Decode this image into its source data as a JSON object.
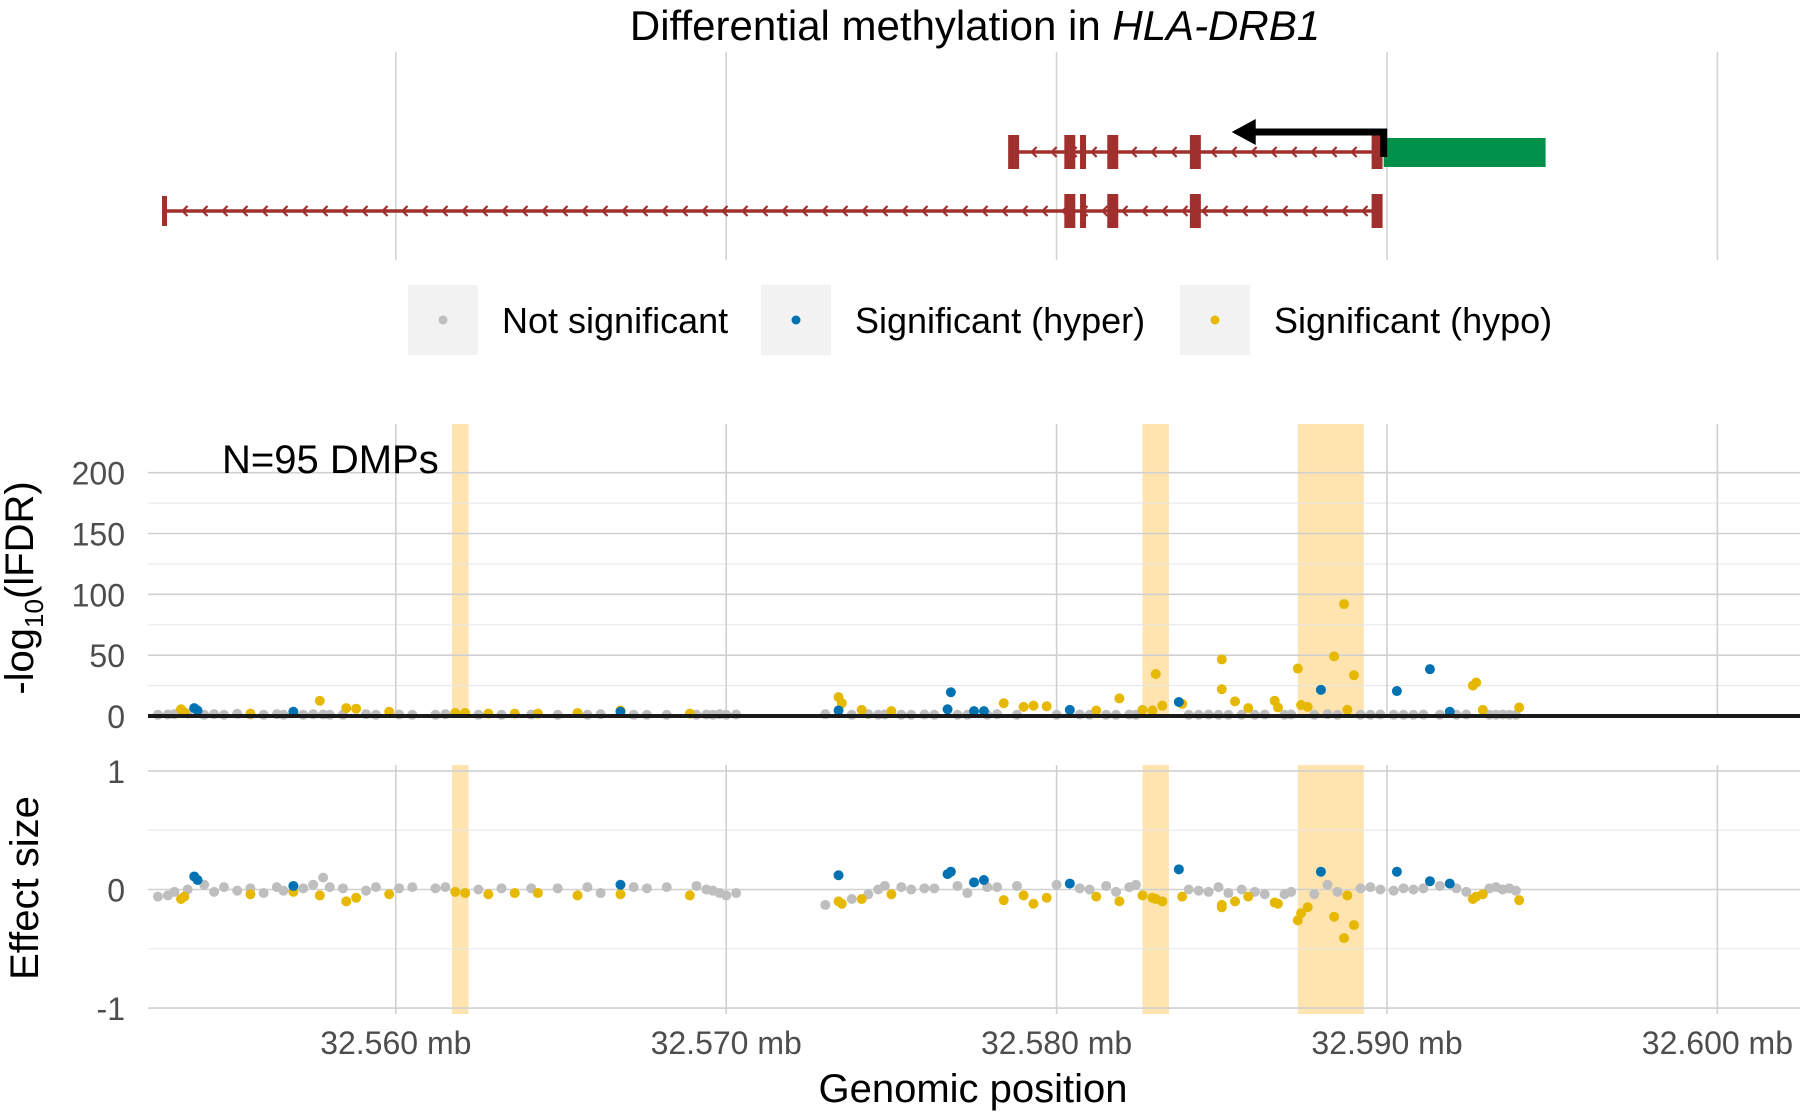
{
  "chart_data": {
    "type": "scatter",
    "title_prefix": "Differential methylation in ",
    "title_gene": "HLA-DRB1",
    "annotation": "N=95 DMPs",
    "xlabel": "Genomic position",
    "x_unit": "mb",
    "xlim": [
      32.5525,
      32.6025
    ],
    "x_ticks": [
      32.56,
      32.57,
      32.58,
      32.59,
      32.6
    ],
    "x_tick_labels": [
      "32.560 mb",
      "32.570 mb",
      "32.580 mb",
      "32.590 mb",
      "32.600 mb"
    ],
    "legend": {
      "placement": "top-center",
      "entries": [
        {
          "label": "Not significant",
          "color": "#BEBEBE"
        },
        {
          "label": "Significant (hyper)",
          "color": "#0072B2"
        },
        {
          "label": "Significant (hypo)",
          "color": "#E6B800"
        }
      ]
    },
    "colors": {
      "not_significant": "#BEBEBE",
      "hyper": "#0072B2",
      "hypo": "#E6B800",
      "highlight": "#FFE4B0",
      "exon": "#A0302D",
      "promoter": "#00904A",
      "tss_arrow": "#000000"
    },
    "gene_track": {
      "tss_arrow": {
        "from": 32.5899,
        "to": 32.5853,
        "direction": "minus"
      },
      "promoter": {
        "start": 32.5899,
        "end": 32.5948
      },
      "transcripts": [
        {
          "start": 32.5787,
          "end": 32.5897,
          "exons": [
            32.5787,
            32.5804,
            32.5808,
            32.5817,
            32.5842,
            32.5897
          ]
        },
        {
          "start": 32.553,
          "end": 32.5897,
          "exons": [
            32.553,
            32.5804,
            32.5808,
            32.5817,
            32.5842,
            32.5897
          ]
        }
      ]
    },
    "highlight_regions": [
      [
        32.5617,
        32.5622
      ],
      [
        32.5826,
        32.5834
      ],
      [
        32.5873,
        32.5893
      ]
    ],
    "panels": [
      {
        "ylabel_main": "-log",
        "ylabel_sub": "10",
        "ylabel_tail": "(lFDR)",
        "ylim": [
          0,
          240
        ],
        "y_ticks": [
          0,
          50,
          100,
          150,
          200
        ],
        "y_tick_labels": [
          "0",
          "50",
          "100",
          "150",
          "200"
        ]
      },
      {
        "ylabel": "Effect size",
        "ylim": [
          -1.05,
          1.05
        ],
        "y_ticks": [
          -1,
          0,
          1
        ],
        "y_tick_labels": [
          "-1",
          "0",
          "1"
        ]
      }
    ],
    "series": [
      {
        "name": "Significant (hyper)",
        "key": "hyper",
        "points": [
          [
            32.5539,
            6.5,
            0.11
          ],
          [
            32.554,
            4.5,
            0.08
          ],
          [
            32.5569,
            3.5,
            0.03
          ],
          [
            32.5668,
            3.5,
            0.04
          ],
          [
            32.5734,
            4.5,
            0.12
          ],
          [
            32.5767,
            5.5,
            0.13
          ],
          [
            32.5768,
            19.5,
            0.15
          ],
          [
            32.5775,
            4.0,
            0.06
          ],
          [
            32.5778,
            4.0,
            0.08
          ],
          [
            32.5804,
            5.0,
            0.05
          ],
          [
            32.5837,
            11.5,
            0.17
          ],
          [
            32.588,
            21.5,
            0.15
          ],
          [
            32.5903,
            20.5,
            0.15
          ],
          [
            32.5913,
            38.5,
            0.07
          ],
          [
            32.5919,
            3.5,
            0.05
          ]
        ]
      },
      {
        "name": "Significant (hypo)",
        "key": "hypo",
        "points": [
          [
            32.5535,
            5.5,
            -0.08
          ],
          [
            32.5536,
            3.0,
            -0.06
          ],
          [
            32.5556,
            2.0,
            -0.04
          ],
          [
            32.5569,
            2.5,
            -0.02
          ],
          [
            32.5577,
            12.5,
            -0.05
          ],
          [
            32.5585,
            6.5,
            -0.1
          ],
          [
            32.5588,
            6.0,
            -0.07
          ],
          [
            32.5598,
            3.5,
            -0.04
          ],
          [
            32.5618,
            2.5,
            -0.02
          ],
          [
            32.5621,
            2.5,
            -0.03
          ],
          [
            32.5628,
            2.0,
            -0.04
          ],
          [
            32.5636,
            2.0,
            -0.03
          ],
          [
            32.5643,
            2.0,
            -0.03
          ],
          [
            32.5655,
            2.5,
            -0.05
          ],
          [
            32.5668,
            4.5,
            -0.04
          ],
          [
            32.5689,
            2.0,
            -0.05
          ],
          [
            32.5734,
            15.5,
            -0.1
          ],
          [
            32.5735,
            10.5,
            -0.12
          ],
          [
            32.5741,
            5.0,
            -0.08
          ],
          [
            32.575,
            4.0,
            -0.04
          ],
          [
            32.5784,
            10.5,
            -0.09
          ],
          [
            32.579,
            7.5,
            -0.05
          ],
          [
            32.5793,
            8.5,
            -0.12
          ],
          [
            32.5797,
            8.0,
            -0.07
          ],
          [
            32.5812,
            4.5,
            -0.06
          ],
          [
            32.5819,
            14.5,
            -0.1
          ],
          [
            32.5826,
            5.0,
            -0.05
          ],
          [
            32.5829,
            4.5,
            -0.07
          ],
          [
            32.583,
            34.5,
            -0.08
          ],
          [
            32.5832,
            8.5,
            -0.1
          ],
          [
            32.5838,
            10.0,
            -0.06
          ],
          [
            32.585,
            46.5,
            -0.13
          ],
          [
            32.585,
            22.0,
            -0.15
          ],
          [
            32.5854,
            12.0,
            -0.1
          ],
          [
            32.5858,
            6.5,
            -0.06
          ],
          [
            32.5866,
            12.5,
            -0.11
          ],
          [
            32.5867,
            7.0,
            -0.12
          ],
          [
            32.5873,
            39.0,
            -0.26
          ],
          [
            32.5874,
            9.0,
            -0.2
          ],
          [
            32.5876,
            7.5,
            -0.15
          ],
          [
            32.5884,
            49.0,
            -0.23
          ],
          [
            32.5887,
            92.0,
            -0.41
          ],
          [
            32.589,
            33.5,
            -0.3
          ],
          [
            32.5888,
            5.0,
            -0.05
          ],
          [
            32.5926,
            25.0,
            -0.08
          ],
          [
            32.5927,
            27.5,
            -0.06
          ],
          [
            32.5929,
            5.0,
            -0.04
          ],
          [
            32.594,
            7.0,
            -0.09
          ]
        ]
      },
      {
        "name": "Not significant",
        "key": "not_significant",
        "points": [
          [
            32.5528,
            1.0,
            -0.06
          ],
          [
            32.5531,
            1.2,
            -0.05
          ],
          [
            32.5533,
            1.5,
            -0.02
          ],
          [
            32.5537,
            2.0,
            0.0
          ],
          [
            32.5542,
            1.0,
            0.04
          ],
          [
            32.5545,
            1.5,
            -0.02
          ],
          [
            32.5548,
            1.0,
            0.02
          ],
          [
            32.5552,
            1.8,
            -0.01
          ],
          [
            32.5556,
            1.2,
            0.01
          ],
          [
            32.556,
            1.0,
            -0.03
          ],
          [
            32.5564,
            1.5,
            0.02
          ],
          [
            32.5566,
            1.0,
            -0.01
          ],
          [
            32.5572,
            1.0,
            0.01
          ],
          [
            32.5575,
            1.5,
            0.04
          ],
          [
            32.5578,
            1.2,
            0.1
          ],
          [
            32.558,
            1.0,
            0.02
          ],
          [
            32.5584,
            1.0,
            0.01
          ],
          [
            32.5591,
            1.5,
            -0.01
          ],
          [
            32.5594,
            1.0,
            0.02
          ],
          [
            32.5601,
            1.2,
            0.01
          ],
          [
            32.5605,
            1.0,
            0.02
          ],
          [
            32.5612,
            1.0,
            0.01
          ],
          [
            32.5615,
            1.5,
            0.02
          ],
          [
            32.5625,
            1.0,
            0.0
          ],
          [
            32.5632,
            1.0,
            0.01
          ],
          [
            32.5641,
            1.2,
            0.01
          ],
          [
            32.5649,
            1.0,
            0.01
          ],
          [
            32.5658,
            1.0,
            0.02
          ],
          [
            32.5662,
            1.5,
            -0.03
          ],
          [
            32.5672,
            1.0,
            0.02
          ],
          [
            32.5676,
            1.0,
            0.01
          ],
          [
            32.5682,
            1.0,
            0.02
          ],
          [
            32.5691,
            1.0,
            0.03
          ],
          [
            32.5694,
            1.2,
            0.0
          ],
          [
            32.5696,
            1.0,
            -0.01
          ],
          [
            32.5698,
            1.5,
            -0.03
          ],
          [
            32.57,
            1.0,
            -0.05
          ],
          [
            32.5703,
            1.2,
            -0.03
          ],
          [
            32.573,
            1.5,
            -0.13
          ],
          [
            32.5738,
            1.0,
            -0.08
          ],
          [
            32.5743,
            1.5,
            -0.04
          ],
          [
            32.5746,
            1.0,
            0.0
          ],
          [
            32.5748,
            1.2,
            0.03
          ],
          [
            32.5753,
            1.0,
            0.02
          ],
          [
            32.5756,
            1.0,
            0.0
          ],
          [
            32.576,
            1.2,
            0.01
          ],
          [
            32.5763,
            1.0,
            0.01
          ],
          [
            32.577,
            1.0,
            0.03
          ],
          [
            32.5773,
            1.0,
            -0.03
          ],
          [
            32.5779,
            1.0,
            0.02
          ],
          [
            32.5782,
            1.5,
            0.02
          ],
          [
            32.5788,
            1.0,
            0.03
          ],
          [
            32.58,
            1.0,
            0.04
          ],
          [
            32.5807,
            1.2,
            0.01
          ],
          [
            32.581,
            1.0,
            0.0
          ],
          [
            32.5815,
            1.0,
            0.03
          ],
          [
            32.5818,
            1.0,
            -0.02
          ],
          [
            32.5822,
            1.2,
            0.02
          ],
          [
            32.5824,
            1.0,
            0.04
          ],
          [
            32.584,
            1.0,
            0.0
          ],
          [
            32.5843,
            1.0,
            -0.01
          ],
          [
            32.5846,
            1.2,
            -0.02
          ],
          [
            32.5849,
            1.0,
            0.02
          ],
          [
            32.5852,
            1.0,
            -0.03
          ],
          [
            32.5856,
            1.0,
            0.0
          ],
          [
            32.586,
            1.0,
            -0.02
          ],
          [
            32.5863,
            1.2,
            -0.04
          ],
          [
            32.5869,
            1.0,
            -0.04
          ],
          [
            32.5871,
            1.2,
            -0.02
          ],
          [
            32.5878,
            1.0,
            -0.04
          ],
          [
            32.5882,
            1.5,
            0.04
          ],
          [
            32.5885,
            1.0,
            -0.02
          ],
          [
            32.5892,
            1.0,
            0.01
          ],
          [
            32.5895,
            1.0,
            0.02
          ],
          [
            32.5898,
            1.2,
            0.0
          ],
          [
            32.5902,
            1.0,
            -0.01
          ],
          [
            32.5905,
            1.0,
            0.01
          ],
          [
            32.5908,
            1.0,
            0.0
          ],
          [
            32.5911,
            1.2,
            0.01
          ],
          [
            32.5916,
            1.0,
            0.03
          ],
          [
            32.5921,
            1.0,
            0.01
          ],
          [
            32.5924,
            1.2,
            -0.02
          ],
          [
            32.5931,
            1.0,
            0.01
          ],
          [
            32.5933,
            1.0,
            0.02
          ],
          [
            32.5935,
            1.2,
            0.0
          ],
          [
            32.5937,
            1.0,
            0.01
          ],
          [
            32.5939,
            1.0,
            -0.01
          ]
        ]
      }
    ]
  }
}
